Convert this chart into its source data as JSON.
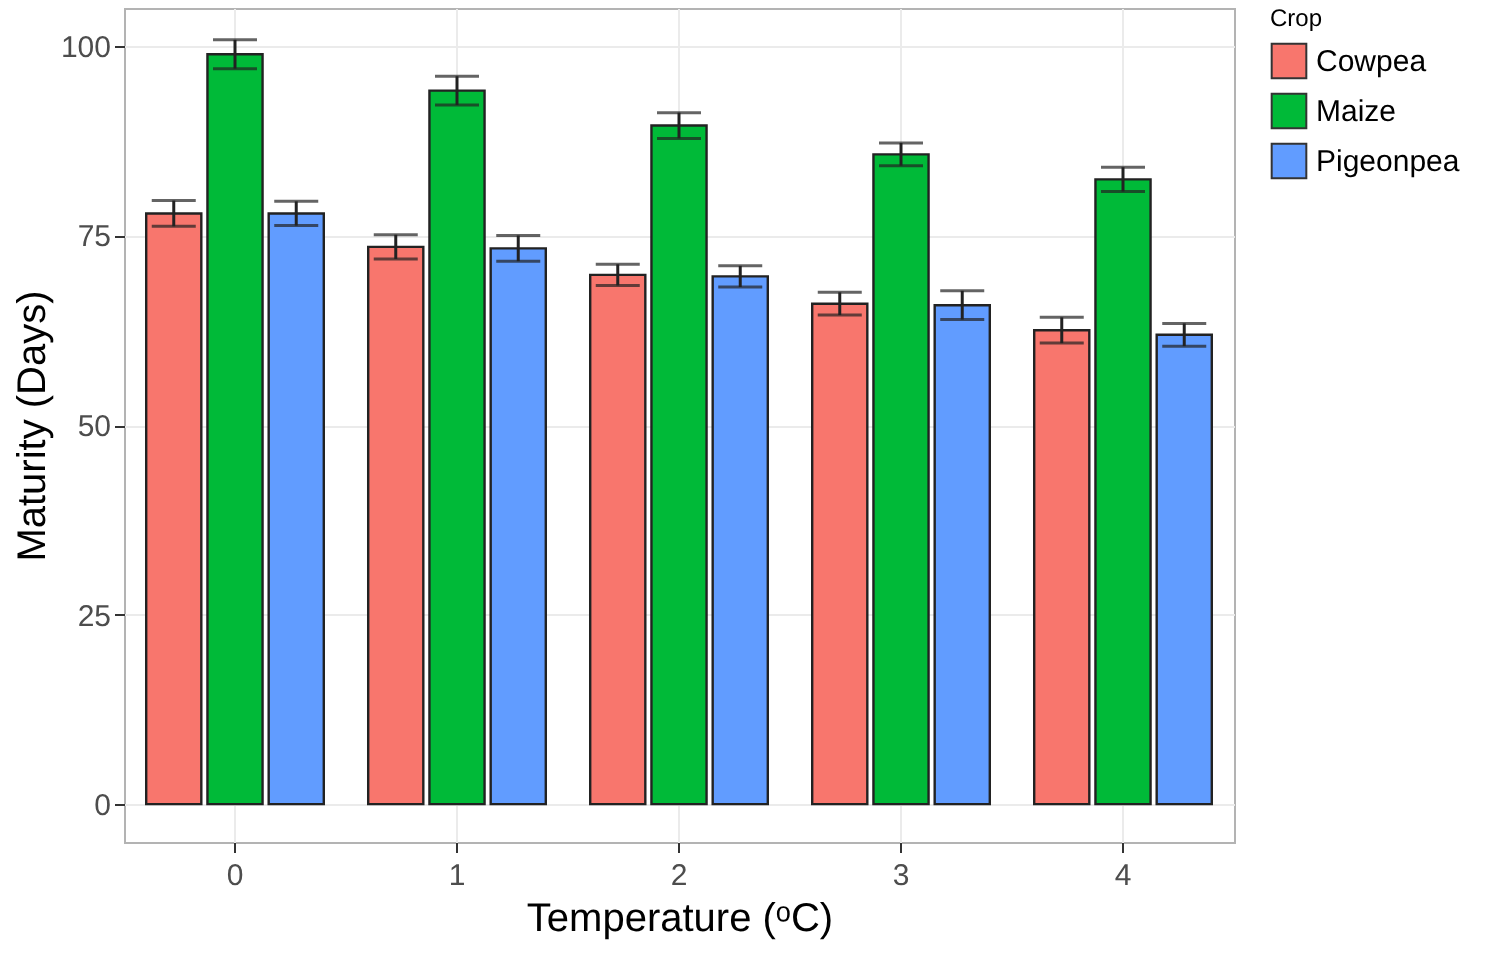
{
  "chart_data": {
    "type": "bar",
    "xlabel": "Temperature (ᵒC)",
    "ylabel": "Maturity (Days)",
    "legend_title": "Crop",
    "legend": "right",
    "grid": true,
    "categories": [
      "0",
      "1",
      "2",
      "3",
      "4"
    ],
    "ylim": [
      -5,
      105
    ],
    "yticks": [
      0,
      25,
      50,
      75,
      100
    ],
    "series": [
      {
        "name": "Cowpea",
        "color": "#f8766d",
        "values": [
          77.9,
          73.5,
          69.8,
          66.0,
          62.5
        ],
        "errors": [
          1.7,
          1.6,
          1.4,
          1.5,
          1.7
        ]
      },
      {
        "name": "Maize",
        "color": "#00ba38",
        "values": [
          98.9,
          94.1,
          89.5,
          85.7,
          82.4
        ],
        "errors": [
          1.9,
          1.9,
          1.7,
          1.5,
          1.6
        ]
      },
      {
        "name": "Pigeonpea",
        "color": "#619cff",
        "values": [
          77.9,
          73.3,
          69.6,
          65.8,
          61.9
        ],
        "errors": [
          1.6,
          1.7,
          1.4,
          1.9,
          1.5
        ]
      }
    ]
  }
}
